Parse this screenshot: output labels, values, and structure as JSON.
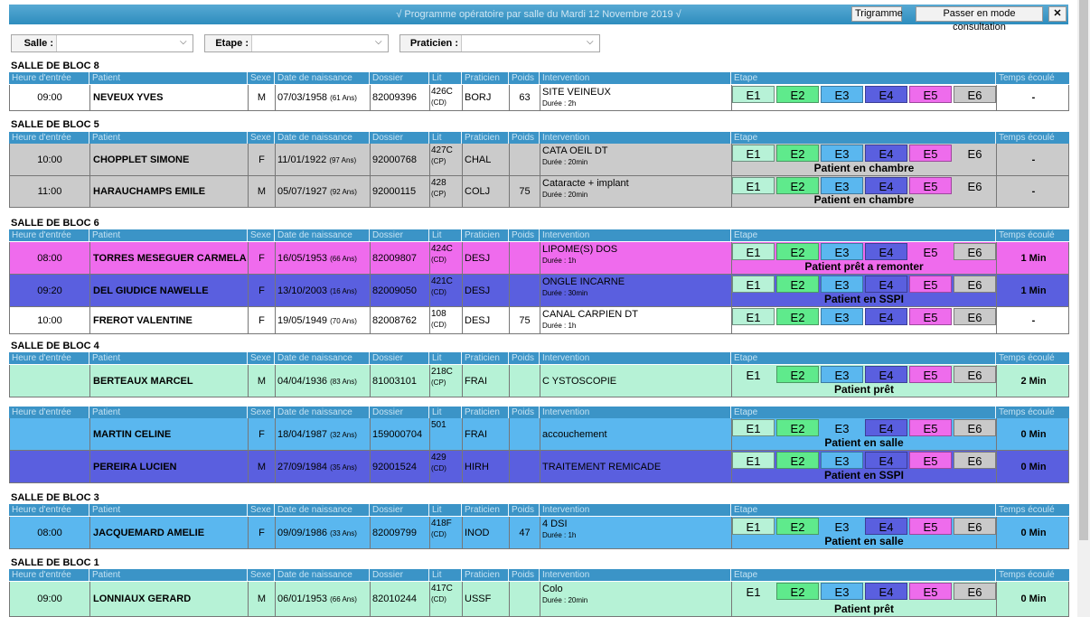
{
  "title": "√ Programme opératoire par salle du Mardi 12 Novembre 2019 √",
  "buttons": {
    "trigramme": "Trigramme",
    "consultation": "Passer en mode consultation",
    "close": "✕"
  },
  "filters": {
    "salle": "Salle :",
    "etape": "Etape :",
    "praticien": "Praticien :"
  },
  "columns": {
    "time": "Heure d'entrée",
    "patient": "Patient",
    "sex": "Sexe",
    "dob": "Date de naissance",
    "dossier": "Dossier",
    "lit": "Lit",
    "praticien": "Praticien",
    "poids": "Poids",
    "intervention": "Intervention",
    "etape": "Etape",
    "elapsed": "Temps écoulé"
  },
  "stage_labels": [
    "E1",
    "E2",
    "E3",
    "E4",
    "E5",
    "E6"
  ],
  "colors": {
    "header": "#3b94c7",
    "gray": "#cbcbcb",
    "pink": "#ef6bed",
    "indigo": "#5a5fdf",
    "mint": "#b6f2d6",
    "sky": "#5ab7ef"
  },
  "sections": [
    {
      "title": "SALLE DE BLOC 8",
      "rows": [
        {
          "time": "09:00",
          "name": "NEVEUX YVES",
          "sex": "M",
          "dob": "07/03/1958",
          "age": "(61 Ans)",
          "dossier": "82009396",
          "lit": "426C",
          "lit_sub": "(CD)",
          "praticien": "BORJ",
          "poids": "63",
          "intervention": "SITE VEINEUX",
          "duree": "Durée : 2h",
          "status": "",
          "elapsed": "-"
        }
      ]
    },
    {
      "title": "SALLE DE BLOC 5",
      "rows": [
        {
          "time": "10:00",
          "name": "CHOPPLET SIMONE",
          "sex": "F",
          "dob": "11/01/1922",
          "age": "(97 Ans)",
          "dossier": "92000768",
          "lit": "427C",
          "lit_sub": "(CP)",
          "praticien": "CHAL",
          "poids": "",
          "intervention": "CATA OEIL DT",
          "duree": "Durée : 20min",
          "status": "Patient en chambre",
          "elapsed": "-"
        },
        {
          "time": "11:00",
          "name": "HARAUCHAMPS EMILE",
          "sex": "M",
          "dob": "05/07/1927",
          "age": "(92 Ans)",
          "dossier": "92000115",
          "lit": "428",
          "lit_sub": "(CP)",
          "praticien": "COLJ",
          "poids": "75",
          "intervention": "Cataracte + implant",
          "duree": "Durée : 20min",
          "status": "Patient en chambre",
          "elapsed": "-"
        }
      ]
    },
    {
      "title": "SALLE DE BLOC 6",
      "rows": [
        {
          "time": "08:00",
          "name": "TORRES MESEGUER CARMELA",
          "sex": "F",
          "dob": "16/05/1953",
          "age": "(66 Ans)",
          "dossier": "82009807",
          "lit": "424C",
          "lit_sub": "(CD)",
          "praticien": "DESJ",
          "poids": "",
          "intervention": "LIPOME(S) DOS",
          "duree": "Durée : 1h",
          "status": "Patient prêt a remonter",
          "elapsed": "1 Min"
        },
        {
          "time": "09:20",
          "name": "DEL GIUDICE NAWELLE",
          "sex": "F",
          "dob": "13/10/2003",
          "age": "(16 Ans)",
          "dossier": "82009050",
          "lit": "421C",
          "lit_sub": "(CD)",
          "praticien": "DESJ",
          "poids": "",
          "intervention": "ONGLE INCARNE",
          "duree": "Durée : 30min",
          "status": "Patient en SSPI",
          "elapsed": "1 Min"
        },
        {
          "time": "10:00",
          "name": "FREROT VALENTINE",
          "sex": "F",
          "dob": "19/05/1949",
          "age": "(70 Ans)",
          "dossier": "82008762",
          "lit": "108",
          "lit_sub": "(CD)",
          "praticien": "DESJ",
          "poids": "75",
          "intervention": "CANAL CARPIEN DT",
          "duree": "Durée : 1h",
          "status": "",
          "elapsed": "-"
        }
      ]
    },
    {
      "title": "SALLE DE BLOC 4",
      "rows": [
        {
          "time": "",
          "name": "BERTEAUX MARCEL",
          "sex": "M",
          "dob": "04/04/1936",
          "age": "(83 Ans)",
          "dossier": "81003101",
          "lit": "218C",
          "lit_sub": "(CP)",
          "praticien": "FRAI",
          "poids": "",
          "intervention": "C YSTOSCOPIE",
          "duree": "",
          "status": "Patient prêt",
          "elapsed": "2 Min"
        }
      ]
    },
    {
      "title": "",
      "rows": [
        {
          "time": "",
          "name": "MARTIN CELINE",
          "sex": "F",
          "dob": "18/04/1987",
          "age": "(32 Ans)",
          "dossier": "159000704",
          "lit": "501",
          "lit_sub": "",
          "praticien": "FRAI",
          "poids": "",
          "intervention": "accouchement",
          "duree": "",
          "status": "Patient en salle",
          "elapsed": "0 Min"
        },
        {
          "time": "",
          "name": "PEREIRA LUCIEN",
          "sex": "M",
          "dob": "27/09/1984",
          "age": "(35 Ans)",
          "dossier": "92001524",
          "lit": "429",
          "lit_sub": "(CD)",
          "praticien": "HIRH",
          "poids": "",
          "intervention": "TRAITEMENT REMICADE",
          "duree": "",
          "status": "Patient en SSPI",
          "elapsed": "0 Min"
        }
      ]
    },
    {
      "title": "SALLE DE BLOC 3",
      "rows": [
        {
          "time": "08:00",
          "name": "JACQUEMARD AMELIE",
          "sex": "F",
          "dob": "09/09/1986",
          "age": "(33 Ans)",
          "dossier": "82009799",
          "lit": "418F",
          "lit_sub": "(CD)",
          "praticien": "INOD",
          "poids": "47",
          "intervention": "4 DSI",
          "duree": "Durée : 1h",
          "status": "Patient en salle",
          "elapsed": "0 Min"
        }
      ]
    },
    {
      "title": "SALLE DE BLOC 1",
      "rows": [
        {
          "time": "09:00",
          "name": "LONNIAUX GERARD",
          "sex": "M",
          "dob": "06/01/1953",
          "age": "(66 Ans)",
          "dossier": "82010244",
          "lit": "417C",
          "lit_sub": "(CD)",
          "praticien": "USSF",
          "poids": "",
          "intervention": "Colo",
          "duree": "Durée : 20min",
          "status": "Patient prêt",
          "elapsed": "0 Min"
        }
      ]
    }
  ]
}
